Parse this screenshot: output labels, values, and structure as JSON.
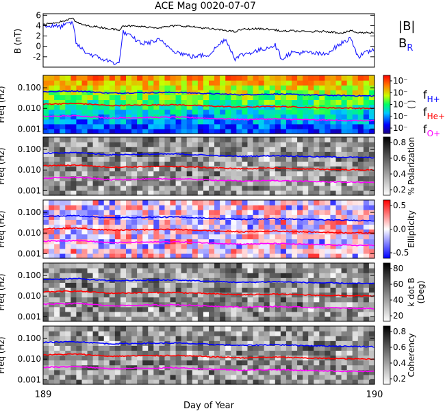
{
  "title": "ACE Mag 0020-07-07",
  "xaxis": {
    "label": "Day of Year",
    "ticks": [
      "189",
      "190"
    ],
    "range": [
      189,
      190
    ]
  },
  "freq_axis": {
    "ticks": [
      "0.100",
      "0.010",
      "0.001"
    ],
    "scale": "log",
    "range": [
      0.0006,
      0.4
    ]
  },
  "colors": {
    "bmag": "#000000",
    "br": "#1a1aff",
    "fH": "#0000ff",
    "fHe": "#ff0000",
    "fO": "#ff00ff"
  },
  "chart_data": [
    {
      "id": "bfield",
      "type": "line",
      "ylabel": "B (nT)",
      "yticks": [
        "6",
        "4",
        "2",
        "0",
        "-2"
      ],
      "ylim": [
        -4,
        6.3
      ],
      "legend": [
        "|B|",
        "B_R"
      ],
      "legend_main": [
        "|B|",
        "B"
      ],
      "legend_sub": [
        "",
        "R"
      ],
      "x": [
        189.0,
        189.05,
        189.09,
        189.1,
        189.13,
        189.16,
        189.2,
        189.23,
        189.24,
        189.3,
        189.35,
        189.4,
        189.45,
        189.5,
        189.55,
        189.58,
        189.6,
        189.65,
        189.7,
        189.72,
        189.75,
        189.8,
        189.85,
        189.9,
        189.93,
        189.95,
        190.0
      ],
      "series": [
        {
          "name": "|B|",
          "values": [
            4.2,
            4.7,
            5.4,
            4.6,
            4.0,
            3.8,
            3.4,
            3.2,
            4.0,
            3.8,
            3.6,
            4.0,
            3.8,
            3.4,
            3.1,
            2.8,
            3.3,
            3.4,
            3.2,
            2.9,
            3.0,
            2.8,
            2.9,
            2.6,
            3.0,
            2.6,
            2.7
          ]
        },
        {
          "name": "B_R",
          "values": [
            4.0,
            3.8,
            4.6,
            0.5,
            -1.2,
            -2.0,
            -2.9,
            -3.4,
            2.8,
            0.5,
            1.2,
            -1.0,
            -2.0,
            -1.6,
            1.5,
            -2.4,
            -1.6,
            -0.8,
            0.3,
            -2.4,
            -1.2,
            -1.2,
            -1.6,
            0.6,
            1.6,
            -2.0,
            -0.5
          ]
        }
      ]
    },
    {
      "id": "power",
      "type": "heatmap",
      "ylabel": "Freq (Hz)",
      "colorbar_label": "( )",
      "colorbar_ticks": [
        "10⁻",
        "10⁻",
        "10⁻",
        "10⁻",
        "10⁻"
      ],
      "legend": [
        "f_H+",
        "f_He+",
        "f_O+"
      ],
      "legend_main": [
        "f",
        "f",
        "f"
      ],
      "legend_sub": [
        "H+",
        "He+",
        "O+"
      ]
    },
    {
      "id": "polarization",
      "type": "heatmap",
      "ylabel": "Freq (Hz)",
      "colorbar_label": "% Polarization",
      "colorbar_ticks": [
        "0.8",
        "0.6",
        "0.4",
        "0.2"
      ]
    },
    {
      "id": "ellipticity",
      "type": "heatmap",
      "ylabel": "Freq (Hz)",
      "colorbar_label": "Ellipticity",
      "colorbar_ticks": [
        "0.5",
        "0.0",
        "-0.5"
      ]
    },
    {
      "id": "kdotb",
      "type": "heatmap",
      "ylabel": "Freq (Hz)",
      "colorbar_label": "k dot B (Deg)",
      "colorbar_label_lines": [
        "k dot B",
        "(Deg)"
      ],
      "colorbar_ticks": [
        "80",
        "60",
        "40",
        "20"
      ]
    },
    {
      "id": "coherency",
      "type": "heatmap",
      "ylabel": "Freq (Hz)",
      "colorbar_label": "Coherency",
      "colorbar_ticks": [
        "0.8",
        "0.6",
        "0.4",
        "0.2"
      ]
    },
    {
      "id": "gyrofreq",
      "type": "line",
      "x": [
        189.0,
        189.1,
        189.2,
        189.3,
        189.4,
        189.5,
        189.6,
        189.7,
        189.8,
        189.9,
        190.0
      ],
      "series": [
        {
          "name": "f_H+",
          "values": [
            0.064,
            0.07,
            0.055,
            0.058,
            0.06,
            0.052,
            0.046,
            0.05,
            0.045,
            0.042,
            0.04
          ]
        },
        {
          "name": "f_He+",
          "values": [
            0.016,
            0.0175,
            0.0137,
            0.0145,
            0.015,
            0.013,
            0.0115,
            0.0125,
            0.0112,
            0.0105,
            0.01
          ]
        },
        {
          "name": "f_O+",
          "values": [
            0.004,
            0.0044,
            0.0034,
            0.0036,
            0.0038,
            0.0033,
            0.0029,
            0.0031,
            0.0028,
            0.0026,
            0.0025
          ]
        }
      ]
    }
  ]
}
